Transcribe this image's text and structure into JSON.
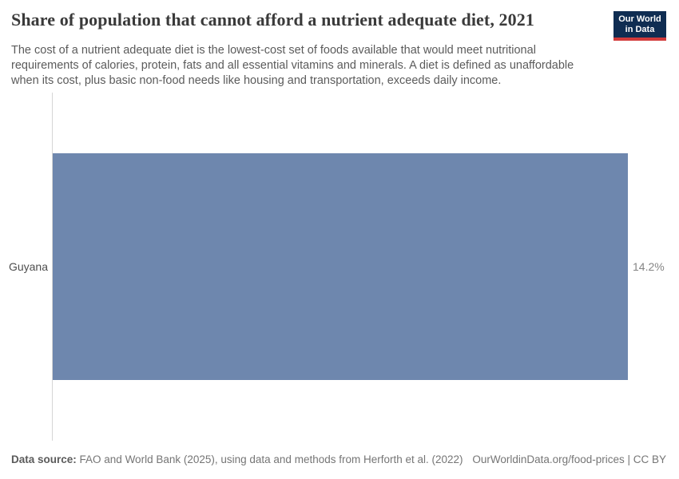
{
  "header": {
    "title": "Share of population that cannot afford a nutrient adequate diet, 2021",
    "subtitle_lines": [
      "The cost of a nutrient adequate diet is the lowest-cost set of foods available that would meet nutritional",
      "requirements of calories, protein, fats and all essential vitamins and minerals. A diet is defined as unaffordable",
      "when its cost, plus basic non-food needs like housing and transportation, exceeds daily income."
    ],
    "logo": {
      "line1": "Our World",
      "line2": "in Data",
      "bg_color": "#0f2d52",
      "stripe_color": "#d23a3a"
    }
  },
  "chart_data": {
    "type": "bar",
    "orientation": "horizontal",
    "title": "Share of population that cannot afford a nutrient adequate diet, 2021",
    "categories": [
      "Guyana"
    ],
    "values": [
      14.2
    ],
    "value_labels": [
      "14.2%"
    ],
    "unit": "%",
    "xlim": [
      0,
      14.2
    ],
    "grid": false,
    "legend": "none",
    "bar_color": "#6e87ae",
    "axis_color": "#d6d6d6"
  },
  "footer": {
    "source_label": "Data source:",
    "source_text": " FAO and World Bank (2025), using data and methods from Herforth et al. (2022)",
    "link_text": "OurWorldinData.org/food-prices | CC BY"
  }
}
